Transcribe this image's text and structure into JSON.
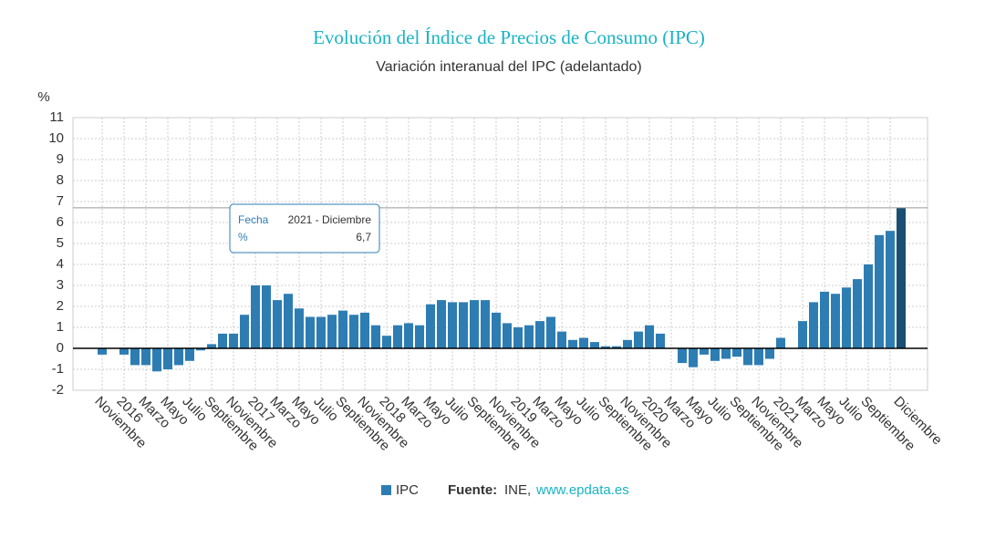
{
  "chart_data": {
    "type": "bar",
    "title": "Evolución del Índice de Precios de Consumo (IPC)",
    "subtitle": "Variación interanual del IPC (adelantado)",
    "y_label": "%",
    "categories": [
      "Noviembre",
      null,
      "2016",
      null,
      "Marzo",
      null,
      "Mayo",
      null,
      "Julio",
      null,
      "Septiembre",
      null,
      "Noviembre",
      null,
      "2017",
      null,
      "Marzo",
      null,
      "Mayo",
      null,
      "Julio",
      null,
      "Septiembre",
      null,
      "Noviembre",
      null,
      "2018",
      null,
      "Marzo",
      null,
      "Mayo",
      null,
      "Julio",
      null,
      "Septiembre",
      null,
      "Noviembre",
      null,
      "2019",
      null,
      "Marzo",
      null,
      "Mayo",
      null,
      "Julio",
      null,
      "Septiembre",
      null,
      "Noviembre",
      null,
      "2020",
      null,
      "Marzo",
      null,
      "Mayo",
      null,
      "Julio",
      null,
      "Septiembre",
      null,
      "Noviembre",
      null,
      "2021",
      null,
      "Marzo",
      null,
      "Mayo",
      null,
      "Julio",
      null,
      "Septiembre",
      null,
      null,
      "Diciembre"
    ],
    "series": [
      {
        "name": "IPC",
        "color": "#2d7db3",
        "highlight_color": "#1a4e72",
        "values": [
          -0.3,
          0.0,
          -0.3,
          -0.8,
          -0.8,
          -1.1,
          -1.0,
          -0.8,
          -0.6,
          -0.1,
          0.2,
          0.7,
          0.7,
          1.6,
          3.0,
          3.0,
          2.3,
          2.6,
          1.9,
          1.5,
          1.5,
          1.6,
          1.8,
          1.6,
          1.7,
          1.1,
          0.6,
          1.1,
          1.2,
          1.1,
          2.1,
          2.3,
          2.2,
          2.2,
          2.3,
          2.3,
          1.7,
          1.2,
          1.0,
          1.1,
          1.3,
          1.5,
          0.8,
          0.4,
          0.5,
          0.3,
          0.1,
          0.1,
          0.4,
          0.8,
          1.1,
          0.7,
          0.0,
          -0.7,
          -0.9,
          -0.3,
          -0.6,
          -0.5,
          -0.4,
          -0.8,
          -0.8,
          -0.5,
          0.5,
          0.0,
          1.3,
          2.2,
          2.7,
          2.6,
          2.9,
          3.3,
          4.0,
          5.4,
          5.6,
          6.7
        ]
      }
    ],
    "ylim": [
      -2,
      11
    ],
    "yticks": [
      -2,
      -1,
      0,
      1,
      2,
      3,
      4,
      5,
      6,
      7,
      8,
      9,
      10,
      11
    ],
    "grid": true,
    "tooltip": {
      "labels": [
        "Fecha",
        "%"
      ],
      "values": [
        "2021 - Diciembre",
        "6,7"
      ]
    },
    "source_label": "Fuente:",
    "source": "INE,",
    "source_url": "www.epdata.es"
  }
}
